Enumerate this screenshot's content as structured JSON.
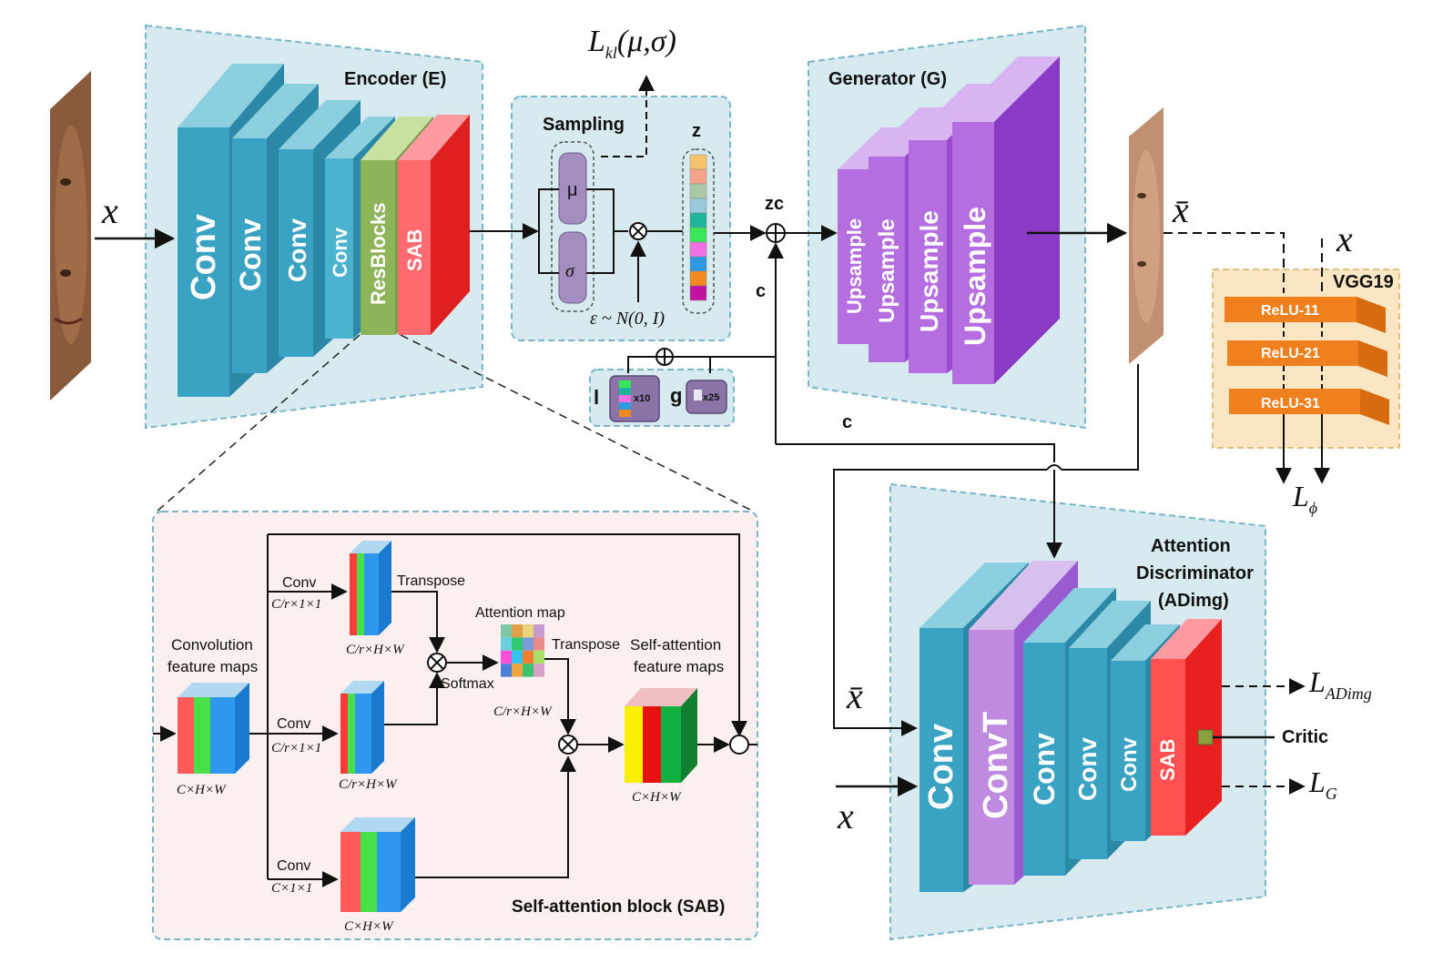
{
  "encoder": {
    "title": "Encoder (E)",
    "input_symbol": "x",
    "layers": [
      "Conv",
      "Conv",
      "Conv",
      "Conv",
      "ResBlocks",
      "SAB"
    ]
  },
  "sampling": {
    "title": "Sampling",
    "mu": "μ",
    "sigma": "σ",
    "z_label": "z",
    "epsilon": "ε ~ N(0, I)",
    "kl_loss": "L",
    "kl_loss_sub": "kl",
    "kl_loss_args": "(μ,σ)",
    "z_colors": [
      "#f6c36a",
      "#f5a48a",
      "#a9c9a4",
      "#98c8da",
      "#1fb59b",
      "#39e85a",
      "#f271e6",
      "#2e98e0",
      "#f28a1e",
      "#c2119f"
    ]
  },
  "condition": {
    "zc_label": "zc",
    "c_label": "c",
    "c_label_2": "c",
    "l_label": "l",
    "l_mult": "x10",
    "g_label": "g",
    "g_mult": "x25"
  },
  "generator": {
    "title": "Generator (G)",
    "layers": [
      "Upsample",
      "Upsample",
      "Upsample",
      "Upsample"
    ],
    "output_symbol": "x̄"
  },
  "vgg": {
    "title": "VGG19",
    "layers": [
      "ReLU-11",
      "ReLU-21",
      "ReLU-31"
    ],
    "input_symbol": "x",
    "loss": "L",
    "loss_sub": "ϕ"
  },
  "discriminator": {
    "title_lines": [
      "Attention",
      "Discriminator",
      "(ADimg)"
    ],
    "layers": [
      "Conv",
      "ConvT",
      "Conv",
      "Conv",
      "Conv",
      "SAB"
    ],
    "input_fake": "x̄",
    "input_real": "x",
    "critic": "Critic",
    "loss_adimg": "L",
    "loss_adimg_sub": "ADimg",
    "loss_g": "L",
    "loss_g_sub": "G"
  },
  "sab": {
    "title": "Self-attention block (SAB)",
    "conv_feature_maps": [
      "Convolution",
      "feature maps"
    ],
    "conv_label": "Conv",
    "branch_dim": "C/r×1×1",
    "branch_dim_last": "C×1×1",
    "transpose": "Transpose",
    "attention_map": "Attention map",
    "softmax": "Softmax",
    "transpose_2": "Transpose",
    "self_attention_maps": [
      "Self-attention",
      "feature maps"
    ],
    "dim_chw": "C×H×W",
    "dim_crhw": "C/r×H×W",
    "attention_colors": [
      "#7ec8a8",
      "#e0a04a",
      "#e8d47a",
      "#c79bd0",
      "#6ad0e0",
      "#2ecc71",
      "#7a9cd8",
      "#e88a8a",
      "#ff4fd8",
      "#33c3f0",
      "#f08030",
      "#a8e06a",
      "#4d7fd8",
      "#f2a440",
      "#3cc46a",
      "#d8a0c8"
    ]
  }
}
